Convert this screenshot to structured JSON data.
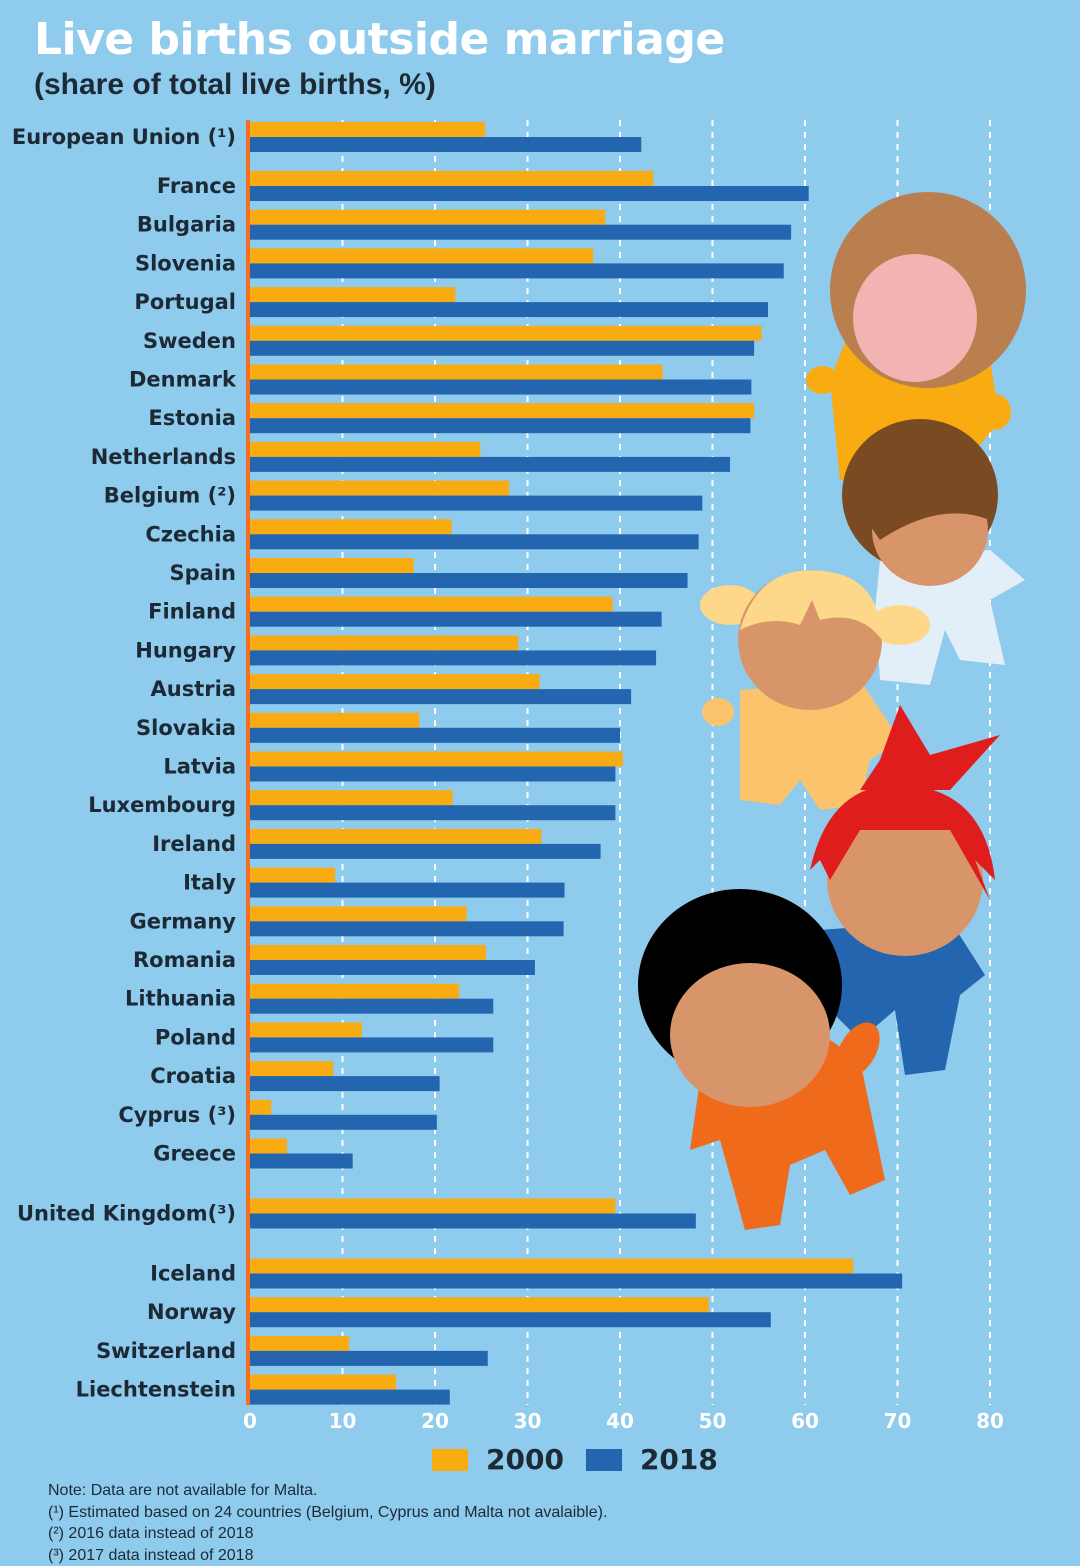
{
  "chart_data": {
    "type": "bar",
    "orientation": "horizontal",
    "title": "Live births outside marriage",
    "subtitle": "(share of total live births, %)",
    "categories": [
      "European Union (¹)",
      "France",
      "Bulgaria",
      "Slovenia",
      "Portugal",
      "Sweden",
      "Denmark",
      "Estonia",
      "Netherlands",
      "Belgium (²)",
      "Czechia",
      "Spain",
      "Finland",
      "Hungary",
      "Austria",
      "Slovakia",
      "Latvia",
      "Luxembourg",
      "Ireland",
      "Italy",
      "Germany",
      "Romania",
      "Lithuania",
      "Poland",
      "Croatia",
      "Cyprus (³)",
      "Greece",
      "United Kingdom(³)",
      "Iceland",
      "Norway",
      "Switzerland",
      "Liechtenstein"
    ],
    "series": [
      {
        "name": "2000",
        "color": "#f8ac12",
        "values": [
          25.4,
          43.6,
          38.4,
          37.1,
          22.2,
          55.3,
          44.6,
          54.5,
          24.9,
          28.0,
          21.8,
          17.7,
          39.2,
          29.0,
          31.3,
          18.3,
          40.3,
          21.9,
          31.5,
          9.2,
          23.4,
          25.5,
          22.6,
          12.1,
          9.0,
          2.3,
          4.0,
          39.5,
          65.2,
          49.6,
          10.7,
          15.8
        ]
      },
      {
        "name": "2018",
        "color": "#2465b0",
        "values": [
          42.3,
          60.4,
          58.5,
          57.7,
          56.0,
          54.5,
          54.2,
          54.1,
          51.9,
          48.9,
          48.5,
          47.3,
          44.5,
          43.9,
          41.2,
          40.0,
          39.5,
          39.5,
          37.9,
          34.0,
          33.9,
          30.8,
          26.3,
          26.3,
          20.5,
          20.2,
          11.1,
          48.2,
          70.5,
          56.3,
          25.7,
          21.6
        ]
      }
    ],
    "xlabel": "",
    "ylabel": "",
    "xlim": [
      0,
      80
    ],
    "ticks": [
      "0",
      "10",
      "20",
      "30",
      "40",
      "50",
      "60",
      "70",
      "80"
    ],
    "grid": true,
    "legend": "bottom-center"
  },
  "legend": {
    "item_2000": "2000",
    "item_2018": "2018"
  },
  "notes": [
    "Note: Data are not available for Malta.",
    "(¹) Estimated based on 24 countries (Belgium, Cyprus and Malta not avalaible).",
    "(²) 2016 data instead of 2018",
    "(³) 2017 data instead of 2018"
  ],
  "colors": {
    "background": "#8ecbed",
    "bar_2000": "#f8ac12",
    "bar_2018": "#2465b0",
    "axis": "#f36f21"
  },
  "icons": [
    "children-illustration"
  ]
}
